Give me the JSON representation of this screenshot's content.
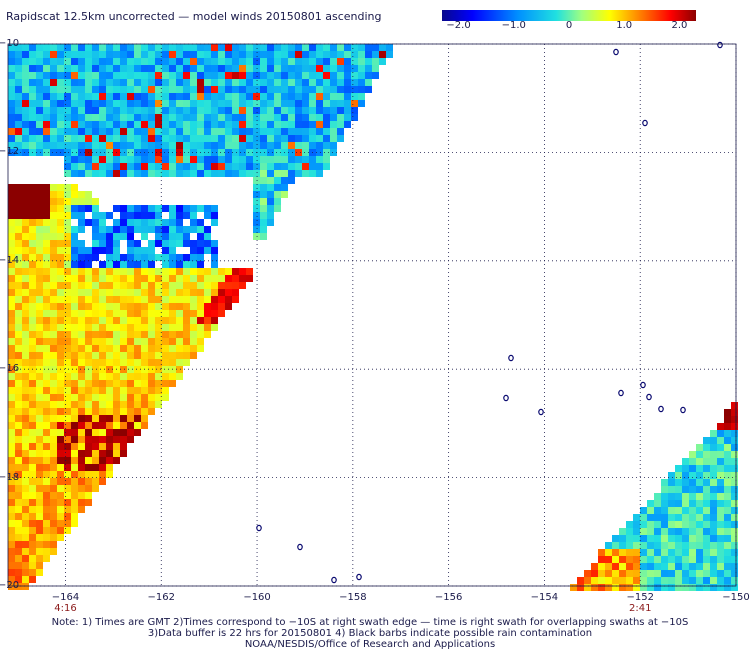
{
  "title": "Rapidscat 12.5km uncorrected — model winds 20150801 ascending",
  "colorbar": {
    "ticks": [
      "−2.0",
      "−1.0",
      "0",
      "1.0",
      "2.0"
    ],
    "tick_values": [
      -2.0,
      -1.0,
      0,
      1.0,
      2.0
    ],
    "range": [
      -2.3,
      2.3
    ]
  },
  "axes": {
    "lon_ticks": [
      "−164",
      "−162",
      "−160",
      "−158",
      "−156",
      "−154",
      "−152",
      "−150"
    ],
    "lon_values": [
      -164,
      -162,
      -160,
      -158,
      -156,
      -154,
      -152,
      -150
    ],
    "lat_ticks": [
      "−10",
      "−12",
      "−14",
      "−16",
      "−18",
      "−20"
    ],
    "lat_values": [
      -10,
      -12,
      -14,
      -16,
      -18,
      -20
    ],
    "lon_range": [
      -165.2,
      -150
    ],
    "lat_range": [
      -20,
      -10
    ]
  },
  "time_labels": [
    {
      "text": "4:16",
      "lon": -164
    },
    {
      "text": "2:41",
      "lon": -152
    }
  ],
  "notes": [
    "Note: 1) Times are GMT 2)Times correspond to −10S at right swath edge — time is right swath for overlapping swaths at −10S",
    "3)Data buffer is 22 hrs for 20150801 4) Black barbs indicate possible rain contamination",
    "NOAA/NESDIS/Office of Research and Applications"
  ],
  "colors": {
    "grid": "#1a1a4a",
    "ramp": [
      "#08088c",
      "#0000ff",
      "#0090ff",
      "#20e0e0",
      "#a0ff80",
      "#ffff00",
      "#ff8000",
      "#ff0000",
      "#8b0000"
    ]
  }
}
